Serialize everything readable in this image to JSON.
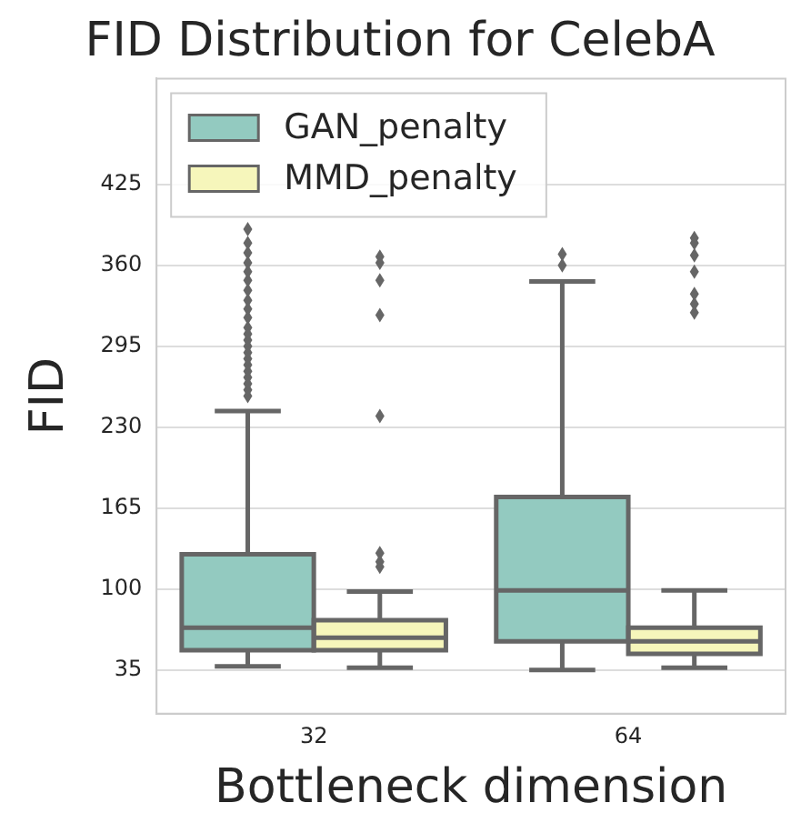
{
  "chart_data": {
    "type": "box",
    "title": "FID Distribution for CelebA",
    "xlabel": "Bottleneck dimension",
    "ylabel": "FID",
    "categories": [
      "32",
      "64"
    ],
    "series": [
      {
        "name": "GAN_penalty",
        "color": "#93cac0",
        "boxes": [
          {
            "low": 38,
            "q1": 51,
            "median": 69,
            "q3": 128,
            "high": 243,
            "outliers": [
              255,
              260,
              265,
              270,
              275,
              280,
              285,
              290,
              295,
              300,
              305,
              310,
              318,
              325,
              332,
              340,
              348,
              355,
              362,
              370,
              378,
              389
            ]
          },
          {
            "low": 35,
            "q1": 58,
            "median": 99,
            "q3": 174,
            "high": 347,
            "outliers": [
              360,
              369
            ]
          }
        ]
      },
      {
        "name": "MMD_penalty",
        "color": "#f6f6bb",
        "boxes": [
          {
            "low": 37,
            "q1": 51,
            "median": 61,
            "q3": 75,
            "high": 98,
            "outliers": [
              118,
              122,
              129,
              239,
              320,
              348,
              362,
              367
            ]
          },
          {
            "low": 37,
            "q1": 48,
            "median": 58,
            "q3": 69,
            "high": 99,
            "outliers": [
              322,
              329,
              337,
              355,
              368,
              378,
              382
            ]
          }
        ]
      }
    ],
    "ylim": [
      0,
      510
    ],
    "yticks": [
      35,
      100,
      165,
      230,
      295,
      360,
      425
    ],
    "grid": "y",
    "legend": "top left"
  }
}
